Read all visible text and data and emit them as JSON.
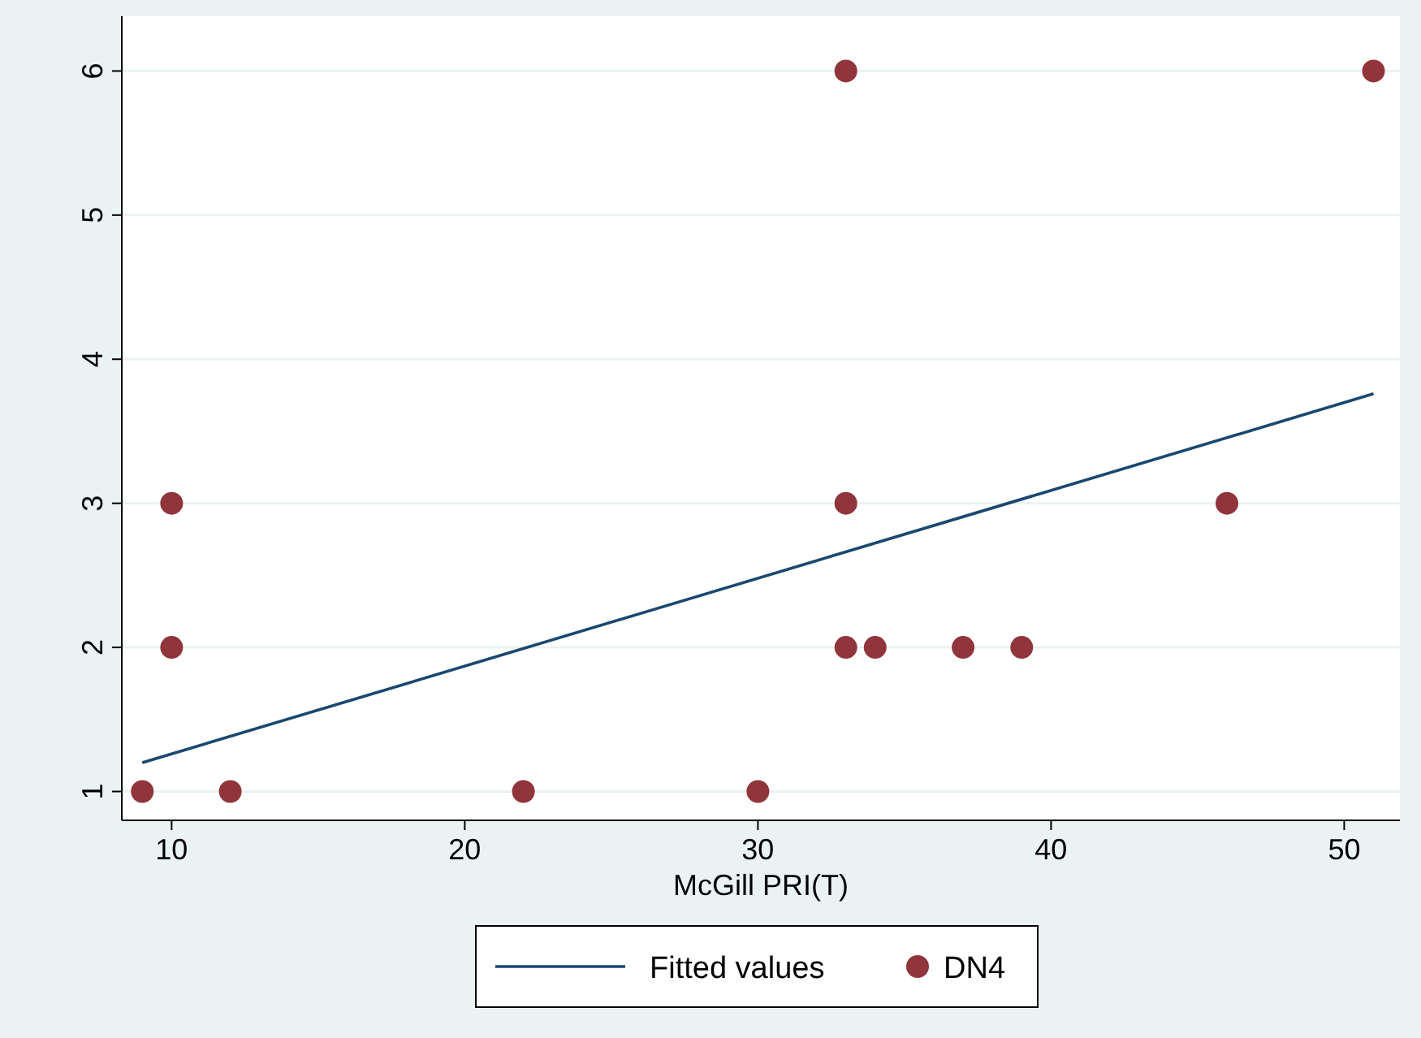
{
  "chart_data": {
    "type": "scatter",
    "xlabel": "McGill PRI(T)",
    "xlim": [
      8.3,
      51.9
    ],
    "ylim": [
      0.8,
      6.38
    ],
    "xticks": [
      10,
      20,
      30,
      40,
      50
    ],
    "yticks": [
      1,
      2,
      3,
      4,
      5,
      6
    ],
    "grid": "y",
    "legend": "bottom",
    "series": [
      {
        "name": "Fitted values",
        "type": "line",
        "color": "#1a476f",
        "x": [
          9,
          51
        ],
        "values": [
          1.2,
          3.76
        ],
        "marker": "none"
      },
      {
        "name": "DN4",
        "color": "#90353b",
        "marker": "circle",
        "x": [
          9,
          12,
          22,
          30,
          10,
          10,
          33,
          51,
          33,
          33,
          34,
          37,
          39,
          46
        ],
        "values": [
          1,
          1,
          1,
          1,
          2,
          3,
          6,
          6,
          3,
          2,
          2,
          2,
          2,
          3
        ]
      }
    ]
  }
}
